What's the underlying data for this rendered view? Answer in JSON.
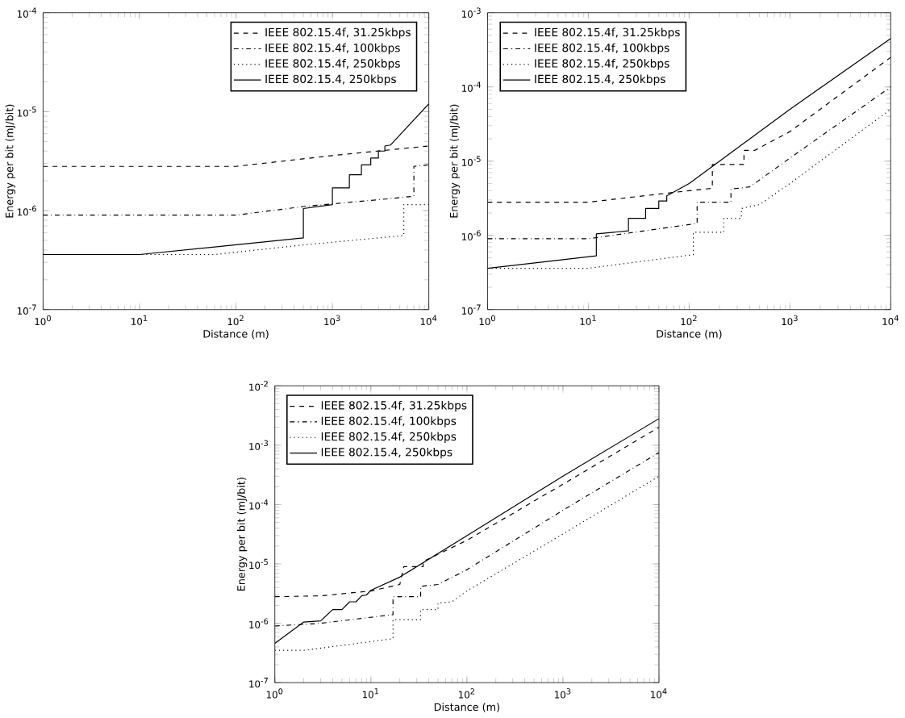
{
  "chart_data": [
    {
      "type": "line",
      "xlabel": "Distance (m)",
      "ylabel": "Energy per bit (mJ/bit)",
      "log": "xy",
      "grid": false,
      "legend": "top right",
      "marker": "none",
      "xlim": [
        1,
        10000
      ],
      "ylim": [
        1e-07,
        0.0001
      ],
      "xticks": [
        {
          "value": 1,
          "label": "10$^{0}$"
        },
        {
          "value": 10,
          "label": "10$^{1}$"
        },
        {
          "value": 100,
          "label": "10$^{2}$"
        },
        {
          "value": 1000,
          "label": "10$^{3}$"
        },
        {
          "value": 10000,
          "label": "10$^{4}$"
        }
      ],
      "yticks": [
        {
          "value": 1e-07,
          "label": "10$^{-7}$"
        },
        {
          "value": 1e-06,
          "label": "10$^{-6}$"
        },
        {
          "value": 1e-05,
          "label": "10$^{-5}$"
        },
        {
          "value": 0.0001,
          "label": "10$^{-4}$"
        }
      ],
      "series": [
        {
          "name": "IEEE 802.15.4f, 31.25kbps",
          "color": "#000000",
          "line_style": "dashed",
          "x": [
            1,
            100,
            1000,
            10000
          ],
          "values": [
            2.8e-06,
            2.8e-06,
            3.6e-06,
            4.5e-06
          ]
        },
        {
          "name": "IEEE 802.15.4f, 100kbps",
          "color": "#000000",
          "line_style": "dashdot",
          "x": [
            1,
            100,
            500,
            5000,
            7000,
            7000,
            10000
          ],
          "values": [
            9e-07,
            9e-07,
            1.1e-06,
            1.35e-06,
            1.4e-06,
            2.8e-06,
            2.9e-06
          ]
        },
        {
          "name": "IEEE 802.15.4f, 250kbps",
          "color": "#000000",
          "line_style": "dotted",
          "x": [
            1,
            60,
            500,
            5500,
            5500,
            10000
          ],
          "values": [
            3.6e-07,
            3.6e-07,
            4.5e-07,
            5.6e-07,
            1.15e-06,
            1.15e-06
          ]
        },
        {
          "name": "IEEE 802.15.4, 250kbps",
          "color": "#000000",
          "line_style": "solid",
          "x": [
            1,
            10,
            500,
            500,
            1000,
            1000,
            1500,
            1500,
            2000,
            2000,
            2500,
            2500,
            3000,
            3000,
            3500,
            3500,
            4000,
            10000
          ],
          "values": [
            3.6e-07,
            3.6e-07,
            5.3e-07,
            1.05e-06,
            1.15e-06,
            1.7e-06,
            1.7e-06,
            2.3e-06,
            2.3e-06,
            2.9e-06,
            2.9e-06,
            3.4e-06,
            3.4e-06,
            4e-06,
            4e-06,
            4.5e-06,
            4.6e-06,
            1.2e-05
          ]
        }
      ]
    },
    {
      "type": "line",
      "xlabel": "Distance (m)",
      "ylabel": "Energy per bit (mJ/bit)",
      "log": "xy",
      "grid": false,
      "legend": "top left",
      "marker": "none",
      "xlim": [
        1,
        10000
      ],
      "ylim": [
        1e-07,
        0.001
      ],
      "xticks": [
        {
          "value": 1,
          "label": "10$^{0}$"
        },
        {
          "value": 10,
          "label": "10$^{1}$"
        },
        {
          "value": 100,
          "label": "10$^{2}$"
        },
        {
          "value": 1000,
          "label": "10$^{3}$"
        },
        {
          "value": 10000,
          "label": "10$^{4}$"
        }
      ],
      "yticks": [
        {
          "value": 1e-07,
          "label": "10$^{-7}$"
        },
        {
          "value": 1e-06,
          "label": "10$^{-6}$"
        },
        {
          "value": 1e-05,
          "label": "10$^{-5}$"
        },
        {
          "value": 0.0001,
          "label": "10$^{-4}$"
        },
        {
          "value": 0.001,
          "label": "10$^{-3}$"
        }
      ],
      "series": [
        {
          "name": "IEEE 802.15.4f, 31.25kbps",
          "color": "#000000",
          "line_style": "dashed",
          "x": [
            1,
            10,
            100,
            170,
            170,
            350,
            350,
            450,
            1000,
            10000
          ],
          "values": [
            2.8e-06,
            2.8e-06,
            4e-06,
            4.3e-06,
            9e-06,
            9e-06,
            1.4e-05,
            1.4e-05,
            2.5e-05,
            0.00025
          ]
        },
        {
          "name": "IEEE 802.15.4f, 100kbps",
          "color": "#000000",
          "line_style": "dashdot",
          "x": [
            1,
            10,
            100,
            120,
            120,
            260,
            260,
            400,
            1000,
            10000
          ],
          "values": [
            9e-07,
            9e-07,
            1.4e-06,
            1.45e-06,
            2.8e-06,
            2.8e-06,
            4.2e-06,
            4.5e-06,
            1.1e-05,
            0.0001
          ]
        },
        {
          "name": "IEEE 802.15.4f, 250kbps",
          "color": "#000000",
          "line_style": "dotted",
          "x": [
            1,
            10,
            110,
            110,
            220,
            220,
            330,
            330,
            500,
            1000,
            10000
          ],
          "values": [
            3.6e-07,
            3.6e-07,
            5.5e-07,
            1.1e-06,
            1.1e-06,
            1.7e-06,
            1.7e-06,
            2.3e-06,
            2.6e-06,
            5e-06,
            5e-05
          ]
        },
        {
          "name": "IEEE 802.15.4, 250kbps",
          "color": "#000000",
          "line_style": "solid",
          "x": [
            1,
            12,
            12,
            25,
            25,
            37,
            37,
            50,
            50,
            60,
            60,
            100,
            1000,
            10000
          ],
          "values": [
            3.6e-07,
            5.3e-07,
            1.05e-06,
            1.15e-06,
            1.7e-06,
            1.7e-06,
            2.3e-06,
            2.3e-06,
            2.9e-06,
            2.9e-06,
            3.4e-06,
            5e-06,
            5e-05,
            0.00045
          ]
        }
      ]
    },
    {
      "type": "line",
      "xlabel": "Distance (m)",
      "ylabel": "Energy per bit (mJ/bit)",
      "log": "xy",
      "grid": false,
      "legend": "top left",
      "marker": "none",
      "xlim": [
        1,
        10000
      ],
      "ylim": [
        1e-07,
        0.01
      ],
      "xticks": [
        {
          "value": 1,
          "label": "10$^{0}$"
        },
        {
          "value": 10,
          "label": "10$^{1}$"
        },
        {
          "value": 100,
          "label": "10$^{2}$"
        },
        {
          "value": 1000,
          "label": "10$^{3}$"
        },
        {
          "value": 10000,
          "label": "10$^{4}$"
        }
      ],
      "yticks": [
        {
          "value": 1e-07,
          "label": "10$^{-7}$"
        },
        {
          "value": 1e-06,
          "label": "10$^{-6}$"
        },
        {
          "value": 1e-05,
          "label": "10$^{-5}$"
        },
        {
          "value": 0.0001,
          "label": "10$^{-4}$"
        },
        {
          "value": 0.001,
          "label": "10$^{-3}$"
        },
        {
          "value": 0.01,
          "label": "10$^{-2}$"
        }
      ],
      "series": [
        {
          "name": "IEEE 802.15.4f, 31.25kbps",
          "color": "#000000",
          "line_style": "dashed",
          "x": [
            1,
            3,
            10,
            20,
            22,
            35,
            35,
            100,
            1000,
            10000
          ],
          "values": [
            2.8e-06,
            2.9e-06,
            3.5e-06,
            4.5e-06,
            9e-06,
            9e-06,
            1.1e-05,
            2.5e-05,
            0.00022,
            0.002
          ]
        },
        {
          "name": "IEEE 802.15.4f, 100kbps",
          "color": "#000000",
          "line_style": "dashdot",
          "x": [
            1,
            3,
            17,
            17,
            33,
            33,
            50,
            100,
            1000,
            10000
          ],
          "values": [
            9e-07,
            1e-06,
            1.4e-06,
            2.8e-06,
            2.8e-06,
            4.2e-06,
            4.5e-06,
            8e-06,
            8e-05,
            0.00075
          ]
        },
        {
          "name": "IEEE 802.15.4f, 250kbps",
          "color": "#000000",
          "line_style": "dotted",
          "x": [
            1,
            2,
            17,
            17,
            33,
            33,
            50,
            50,
            70,
            100,
            1000,
            10000
          ],
          "values": [
            3.5e-07,
            3.5e-07,
            5.5e-07,
            1.15e-06,
            1.15e-06,
            1.7e-06,
            1.7e-06,
            2.2e-06,
            2.3e-06,
            3.5e-06,
            3.2e-05,
            0.0003
          ]
        },
        {
          "name": "IEEE 802.15.4, 250kbps",
          "color": "#000000",
          "line_style": "solid",
          "x": [
            1,
            2,
            3,
            4,
            5,
            6,
            7,
            8,
            9,
            10,
            20,
            100,
            1000,
            10000
          ],
          "values": [
            4.6e-07,
            1.05e-06,
            1.1e-06,
            1.7e-06,
            1.7e-06,
            2.3e-06,
            2.3e-06,
            2.9e-06,
            3e-06,
            3.6e-06,
            6e-06,
            3e-05,
            0.0003,
            0.0028
          ]
        }
      ]
    }
  ]
}
